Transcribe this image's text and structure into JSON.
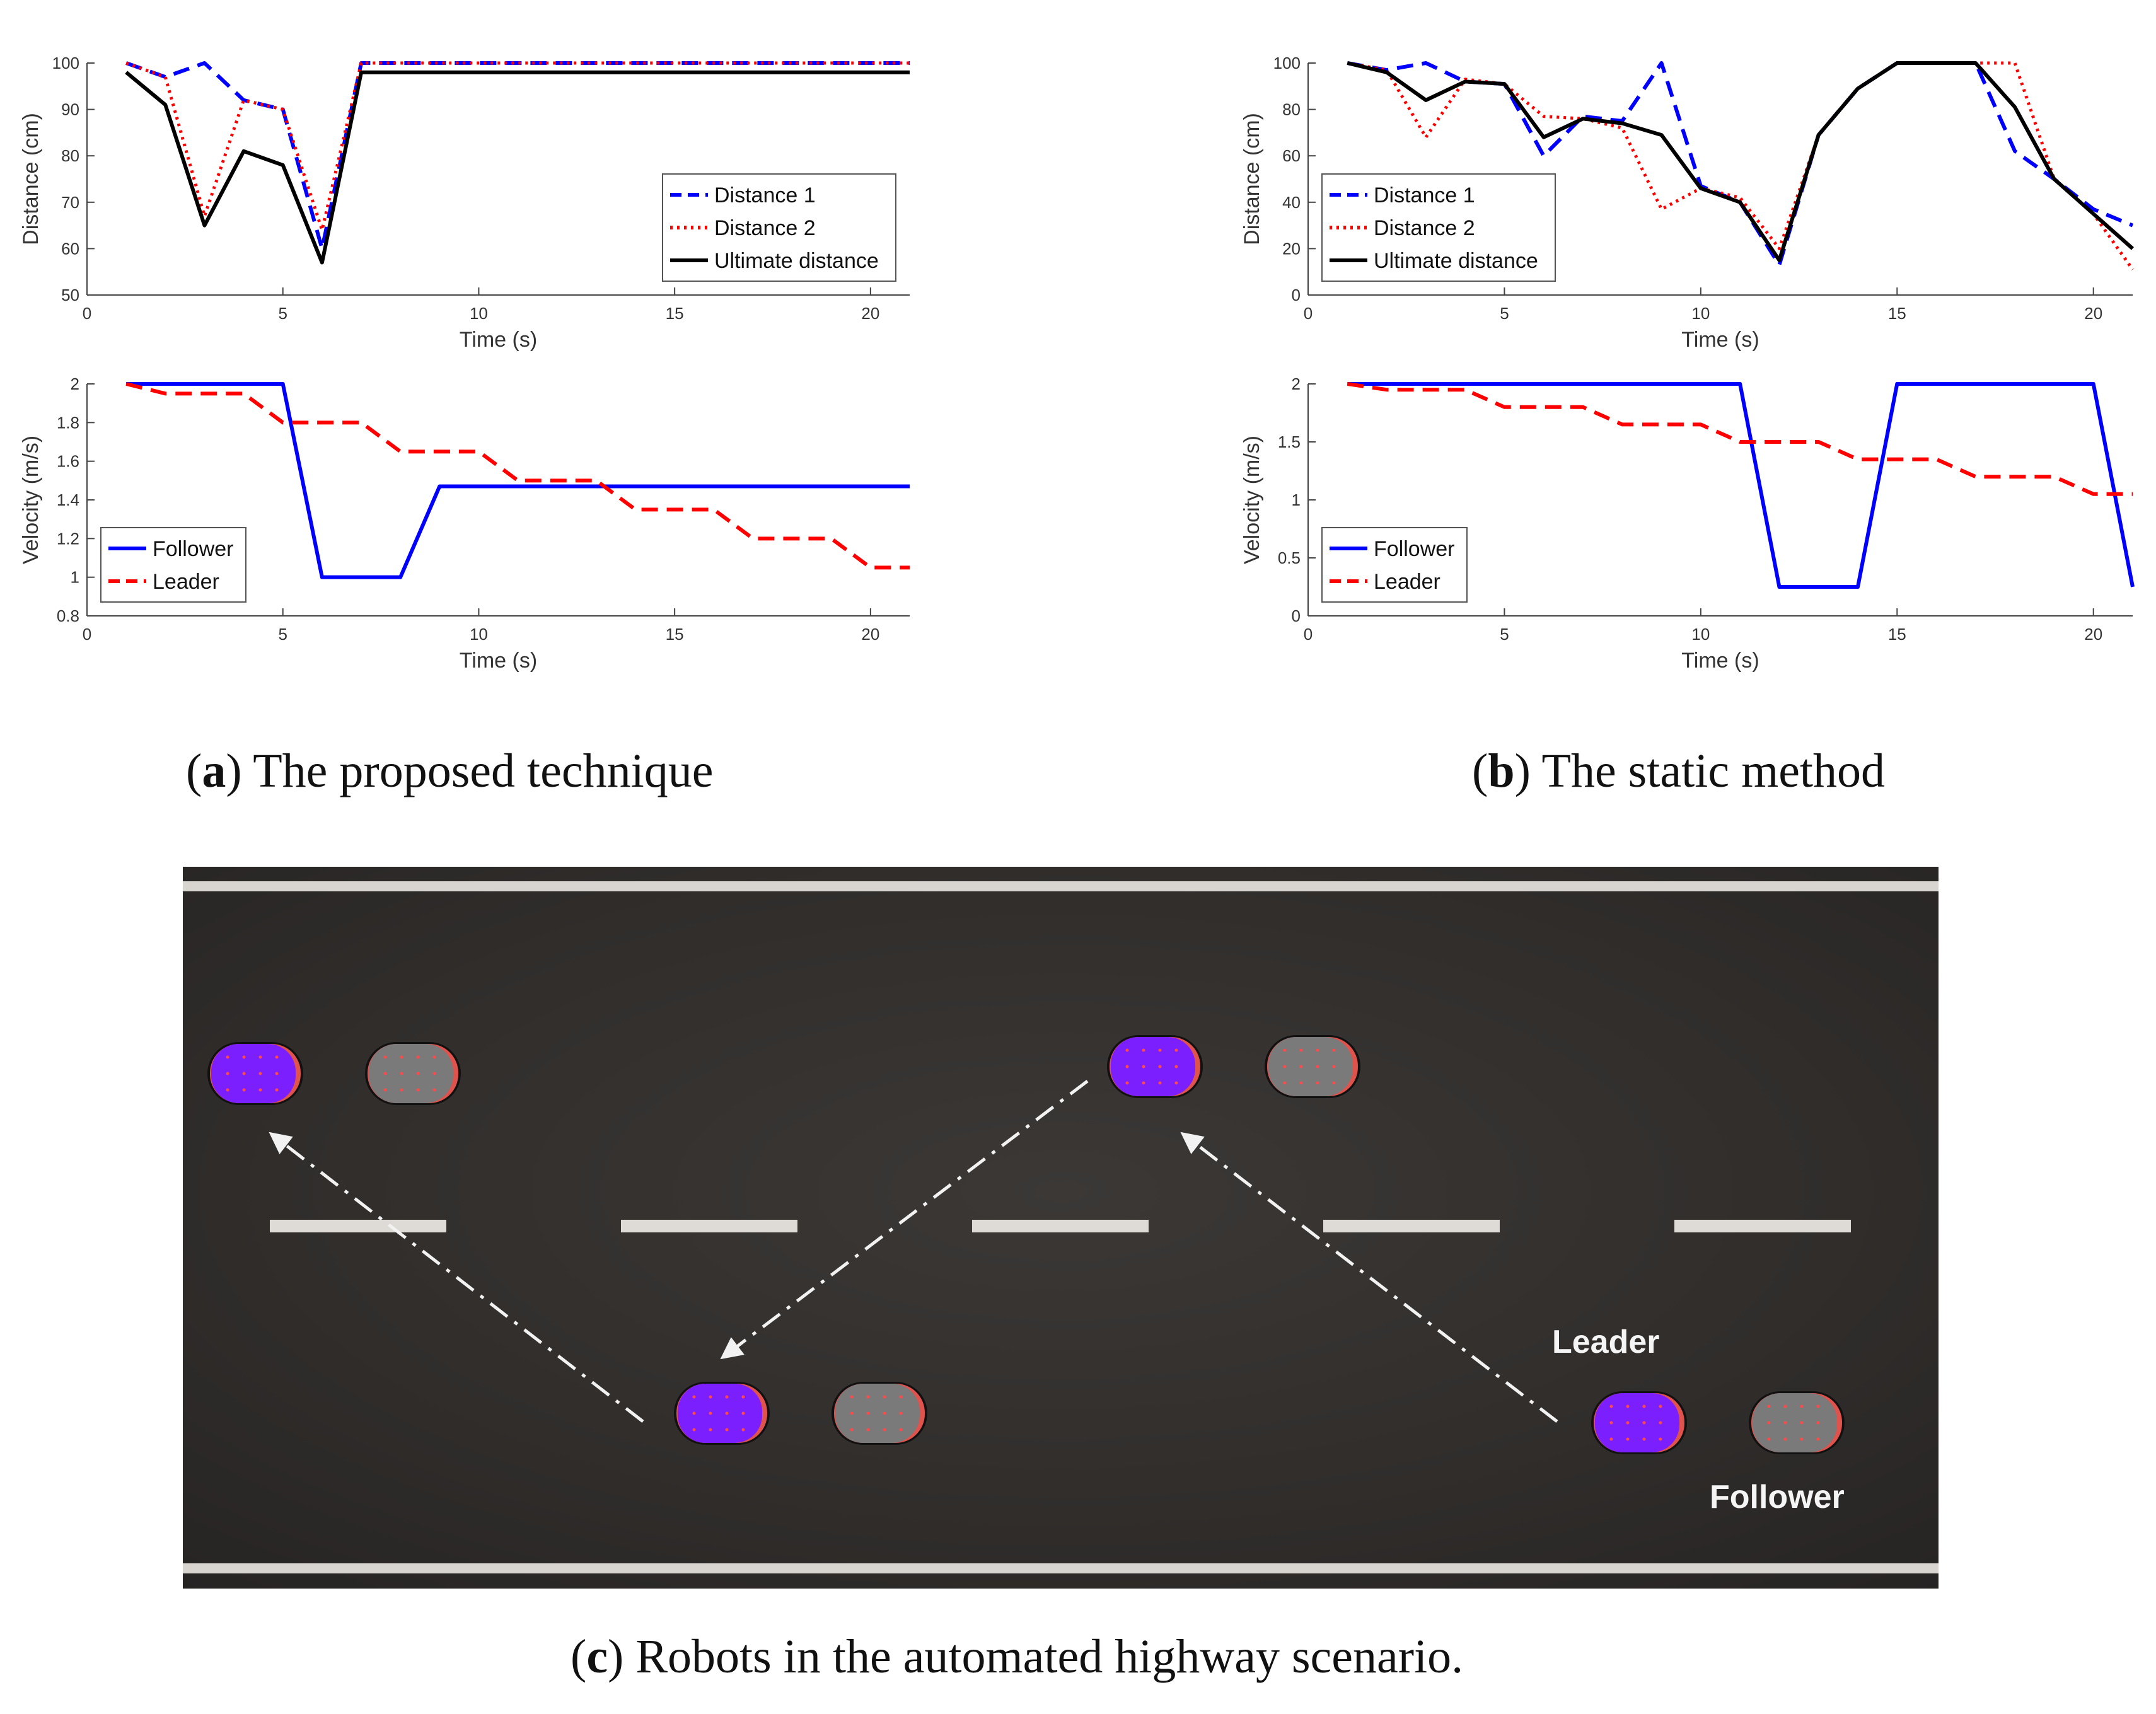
{
  "captions": {
    "a": {
      "letter": "a",
      "text": ") The proposed technique"
    },
    "b": {
      "letter": "b",
      "text": ") The static method"
    },
    "c": {
      "letter": "c",
      "text": ") Robots in the automated highway scenario."
    }
  },
  "chart_data": [
    {
      "id": "a-distance",
      "type": "line",
      "xlabel": "Time (s)",
      "ylabel": "Distance (cm)",
      "xlim": [
        0,
        21
      ],
      "ylim": [
        50,
        100
      ],
      "xticks": [
        0,
        5,
        10,
        15,
        20
      ],
      "yticks": [
        50,
        60,
        70,
        80,
        90,
        100
      ],
      "legend": {
        "placement": "bottom-right"
      },
      "grid": false,
      "series": [
        {
          "name": "Distance 1",
          "color": "#0000ff",
          "style": "dashed",
          "x": [
            1,
            2,
            3,
            4,
            5,
            6,
            7,
            21
          ],
          "y": [
            100,
            97,
            100,
            92,
            90,
            60,
            100,
            100
          ]
        },
        {
          "name": "Distance 2",
          "color": "#ff0000",
          "style": "dotted",
          "x": [
            1,
            2,
            3,
            4,
            5,
            6,
            7,
            21
          ],
          "y": [
            100,
            97,
            67,
            92,
            90,
            64,
            100,
            100
          ]
        },
        {
          "name": "Ultimate distance",
          "color": "#000000",
          "style": "solid",
          "x": [
            1,
            2,
            3,
            4,
            5,
            6,
            7,
            21
          ],
          "y": [
            98,
            91,
            65,
            81,
            78,
            57,
            98,
            98
          ]
        }
      ]
    },
    {
      "id": "a-velocity",
      "type": "line",
      "xlabel": "Time (s)",
      "ylabel": "Velocity (m/s)",
      "xlim": [
        0,
        21
      ],
      "ylim": [
        0.8,
        2
      ],
      "xticks": [
        0,
        5,
        10,
        15,
        20
      ],
      "yticks": [
        0.8,
        1,
        1.2,
        1.4,
        1.6,
        1.8,
        2
      ],
      "legend": {
        "placement": "bottom-left"
      },
      "grid": false,
      "series": [
        {
          "name": "Follower",
          "color": "#0000ff",
          "style": "solid",
          "x": [
            1,
            5,
            6,
            8,
            9,
            21
          ],
          "y": [
            2,
            2,
            1,
            1,
            1.47,
            1.47
          ]
        },
        {
          "name": "Leader",
          "color": "#ff0000",
          "style": "dashed",
          "x": [
            1,
            2,
            3,
            4,
            5,
            6,
            7,
            8,
            9,
            10,
            11,
            12,
            13,
            14,
            15,
            16,
            17,
            18,
            19,
            20,
            21
          ],
          "y": [
            2,
            1.95,
            1.95,
            1.95,
            1.8,
            1.8,
            1.8,
            1.65,
            1.65,
            1.65,
            1.5,
            1.5,
            1.5,
            1.35,
            1.35,
            1.35,
            1.2,
            1.2,
            1.2,
            1.05,
            1.05
          ]
        }
      ]
    },
    {
      "id": "b-distance",
      "type": "line",
      "xlabel": "Time (s)",
      "ylabel": "Distance (cm)",
      "xlim": [
        0,
        21
      ],
      "ylim": [
        0,
        100
      ],
      "xticks": [
        0,
        5,
        10,
        15,
        20
      ],
      "yticks": [
        0,
        20,
        40,
        60,
        80,
        100
      ],
      "legend": {
        "placement": "bottom-left"
      },
      "grid": false,
      "series": [
        {
          "name": "Distance 1",
          "color": "#0000ff",
          "style": "dashed",
          "x": [
            1,
            2,
            3,
            4,
            5,
            6,
            7,
            8,
            9,
            10,
            11,
            12,
            13,
            14,
            15,
            16,
            17,
            18,
            19,
            20,
            21
          ],
          "y": [
            100,
            97,
            100,
            92,
            91,
            60,
            77,
            75,
            100,
            47,
            40,
            13,
            69,
            89,
            100,
            100,
            100,
            62,
            50,
            37,
            30
          ]
        },
        {
          "name": "Distance 2",
          "color": "#ff0000",
          "style": "dotted",
          "x": [
            1,
            2,
            3,
            4,
            5,
            6,
            7,
            8,
            9,
            10,
            11,
            12,
            13,
            14,
            15,
            16,
            17,
            18,
            19,
            20,
            21
          ],
          "y": [
            100,
            97,
            68,
            93,
            91,
            77,
            76,
            72,
            37,
            46,
            42,
            20,
            69,
            89,
            100,
            100,
            100,
            100,
            50,
            35,
            11
          ]
        },
        {
          "name": "Ultimate distance",
          "color": "#000000",
          "style": "solid",
          "x": [
            1,
            2,
            3,
            4,
            5,
            6,
            7,
            8,
            9,
            10,
            11,
            12,
            13,
            14,
            15,
            16,
            17,
            18,
            19,
            20,
            21
          ],
          "y": [
            100,
            96,
            84,
            92,
            91,
            68,
            76,
            74,
            69,
            46,
            40,
            15,
            69,
            89,
            100,
            100,
            100,
            81,
            50,
            35,
            20
          ]
        }
      ]
    },
    {
      "id": "b-velocity",
      "type": "line",
      "xlabel": "Time (s)",
      "ylabel": "Velocity (m/s)",
      "xlim": [
        0,
        21
      ],
      "ylim": [
        0,
        2
      ],
      "xticks": [
        0,
        5,
        10,
        15,
        20
      ],
      "yticks": [
        0,
        0.5,
        1,
        1.5,
        2
      ],
      "legend": {
        "placement": "bottom-left"
      },
      "grid": false,
      "series": [
        {
          "name": "Follower",
          "color": "#0000ff",
          "style": "solid",
          "x": [
            1,
            11,
            12,
            14,
            15,
            20,
            21
          ],
          "y": [
            2,
            2,
            0.25,
            0.25,
            2,
            2,
            0.25
          ]
        },
        {
          "name": "Leader",
          "color": "#ff0000",
          "style": "dashed",
          "x": [
            1,
            2,
            3,
            4,
            5,
            6,
            7,
            8,
            9,
            10,
            11,
            12,
            13,
            14,
            15,
            16,
            17,
            18,
            19,
            20,
            21
          ],
          "y": [
            2,
            1.95,
            1.95,
            1.95,
            1.8,
            1.8,
            1.8,
            1.65,
            1.65,
            1.65,
            1.5,
            1.5,
            1.5,
            1.35,
            1.35,
            1.35,
            1.2,
            1.2,
            1.2,
            1.05,
            1.05
          ]
        }
      ]
    }
  ],
  "highway": {
    "leader_label": "Leader",
    "follower_label": "Follower",
    "leader_color": "#7b1fff",
    "follower_color": "#7a7a7a",
    "road_color": "#2f2c2a",
    "marking_color": "#e3e0dc"
  }
}
